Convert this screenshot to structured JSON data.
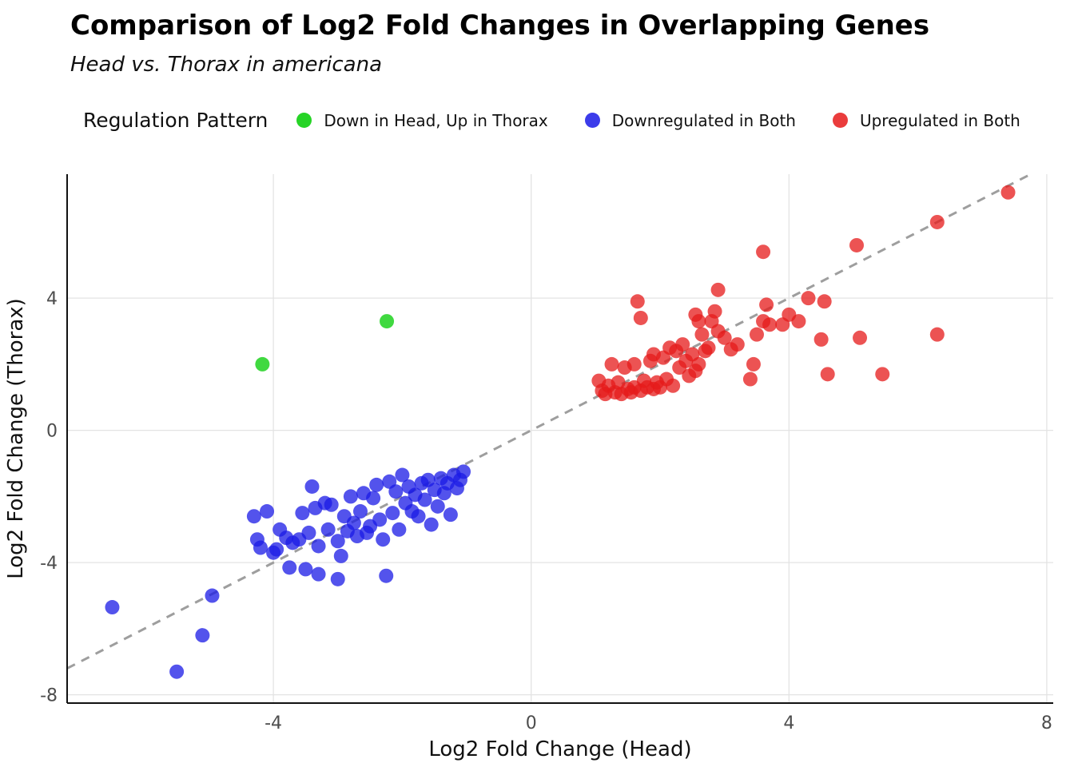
{
  "title": "Comparison of Log2 Fold Changes in Overlapping Genes",
  "subtitle": "Head vs. Thorax in americana",
  "legend": {
    "title": "Regulation Pattern",
    "items": [
      {
        "label": "Down in Head, Up in Thorax",
        "color": "#00cc00"
      },
      {
        "label": "Downregulated in Both",
        "color": "#1a1ae6"
      },
      {
        "label": "Upregulated in Both",
        "color": "#e61a1a"
      }
    ]
  },
  "chart_data": {
    "type": "scatter",
    "title": "Comparison of Log2 Fold Changes in Overlapping Genes",
    "subtitle": "Head vs. Thorax in americana",
    "xlabel": "Log2 Fold Change (Head)",
    "ylabel": "Log2 Fold Change (Thorax)",
    "xlim": [
      -7.2,
      8.1
    ],
    "ylim": [
      -8.25,
      7.75
    ],
    "xticks": [
      -4,
      0,
      4,
      8
    ],
    "yticks": [
      -8,
      -4,
      0,
      4
    ],
    "grid": true,
    "legend_position": "top",
    "identity_line": {
      "equation": "y = x",
      "style": "dashed",
      "color": "#9e9e9e",
      "x_range": [
        -7.2,
        7.75
      ]
    },
    "point_radius": 9,
    "point_opacity": 0.75,
    "axis_text_color": "#4d4d4d",
    "grid_color": "#e3e3e3",
    "series": [
      {
        "name": "Down in Head, Up in Thorax",
        "color": "#00cc00",
        "points": [
          [
            -4.17,
            2.0
          ],
          [
            -2.24,
            3.3
          ]
        ]
      },
      {
        "name": "Downregulated in Both",
        "color": "#1a1ae6",
        "points": [
          [
            -6.5,
            -5.35
          ],
          [
            -5.5,
            -7.3
          ],
          [
            -5.1,
            -6.2
          ],
          [
            -4.95,
            -5.0
          ],
          [
            -4.3,
            -2.6
          ],
          [
            -4.25,
            -3.3
          ],
          [
            -4.2,
            -3.55
          ],
          [
            -4.1,
            -2.45
          ],
          [
            -4.0,
            -3.7
          ],
          [
            -3.95,
            -3.6
          ],
          [
            -3.9,
            -3.0
          ],
          [
            -3.8,
            -3.25
          ],
          [
            -3.75,
            -4.15
          ],
          [
            -3.7,
            -3.4
          ],
          [
            -3.6,
            -3.3
          ],
          [
            -3.55,
            -2.5
          ],
          [
            -3.5,
            -4.2
          ],
          [
            -3.45,
            -3.1
          ],
          [
            -3.4,
            -1.7
          ],
          [
            -3.35,
            -2.35
          ],
          [
            -3.3,
            -3.5
          ],
          [
            -3.3,
            -4.35
          ],
          [
            -3.2,
            -2.2
          ],
          [
            -3.15,
            -3.0
          ],
          [
            -3.1,
            -2.25
          ],
          [
            -3.0,
            -3.35
          ],
          [
            -3.0,
            -4.5
          ],
          [
            -2.95,
            -3.8
          ],
          [
            -2.9,
            -2.6
          ],
          [
            -2.85,
            -3.05
          ],
          [
            -2.8,
            -2.0
          ],
          [
            -2.75,
            -2.8
          ],
          [
            -2.7,
            -3.2
          ],
          [
            -2.65,
            -2.45
          ],
          [
            -2.6,
            -1.9
          ],
          [
            -2.55,
            -3.1
          ],
          [
            -2.5,
            -2.9
          ],
          [
            -2.45,
            -2.05
          ],
          [
            -2.4,
            -1.65
          ],
          [
            -2.35,
            -2.7
          ],
          [
            -2.3,
            -3.3
          ],
          [
            -2.25,
            -4.4
          ],
          [
            -2.2,
            -1.55
          ],
          [
            -2.15,
            -2.5
          ],
          [
            -2.1,
            -1.85
          ],
          [
            -2.05,
            -3.0
          ],
          [
            -2.0,
            -1.35
          ],
          [
            -1.95,
            -2.2
          ],
          [
            -1.9,
            -1.7
          ],
          [
            -1.85,
            -2.45
          ],
          [
            -1.8,
            -1.95
          ],
          [
            -1.75,
            -2.6
          ],
          [
            -1.7,
            -1.6
          ],
          [
            -1.65,
            -2.1
          ],
          [
            -1.6,
            -1.5
          ],
          [
            -1.55,
            -2.85
          ],
          [
            -1.5,
            -1.8
          ],
          [
            -1.45,
            -2.3
          ],
          [
            -1.4,
            -1.45
          ],
          [
            -1.35,
            -1.9
          ],
          [
            -1.3,
            -1.6
          ],
          [
            -1.25,
            -2.55
          ],
          [
            -1.2,
            -1.35
          ],
          [
            -1.15,
            -1.75
          ],
          [
            -1.1,
            -1.5
          ],
          [
            -1.05,
            -1.25
          ]
        ]
      },
      {
        "name": "Upregulated in Both",
        "color": "#e61a1a",
        "points": [
          [
            1.05,
            1.5
          ],
          [
            1.1,
            1.2
          ],
          [
            1.15,
            1.1
          ],
          [
            1.2,
            1.35
          ],
          [
            1.25,
            2.0
          ],
          [
            1.3,
            1.15
          ],
          [
            1.35,
            1.45
          ],
          [
            1.4,
            1.1
          ],
          [
            1.45,
            1.9
          ],
          [
            1.5,
            1.25
          ],
          [
            1.55,
            1.15
          ],
          [
            1.6,
            2.0
          ],
          [
            1.6,
            1.3
          ],
          [
            1.65,
            3.9
          ],
          [
            1.7,
            1.2
          ],
          [
            1.7,
            3.4
          ],
          [
            1.75,
            1.5
          ],
          [
            1.8,
            1.3
          ],
          [
            1.85,
            2.1
          ],
          [
            1.9,
            1.25
          ],
          [
            1.9,
            2.3
          ],
          [
            1.95,
            1.45
          ],
          [
            2.0,
            1.3
          ],
          [
            2.05,
            2.2
          ],
          [
            2.1,
            1.55
          ],
          [
            2.15,
            2.5
          ],
          [
            2.2,
            1.35
          ],
          [
            2.25,
            2.4
          ],
          [
            2.3,
            1.9
          ],
          [
            2.35,
            2.6
          ],
          [
            2.4,
            2.1
          ],
          [
            2.45,
            1.65
          ],
          [
            2.5,
            2.3
          ],
          [
            2.55,
            1.8
          ],
          [
            2.55,
            3.5
          ],
          [
            2.6,
            2.0
          ],
          [
            2.6,
            3.3
          ],
          [
            2.65,
            2.9
          ],
          [
            2.7,
            2.4
          ],
          [
            2.75,
            2.5
          ],
          [
            2.8,
            3.3
          ],
          [
            2.85,
            3.6
          ],
          [
            2.9,
            4.25
          ],
          [
            2.9,
            3.0
          ],
          [
            3.0,
            2.8
          ],
          [
            3.1,
            2.45
          ],
          [
            3.2,
            2.6
          ],
          [
            3.4,
            1.55
          ],
          [
            3.45,
            2.0
          ],
          [
            3.5,
            2.9
          ],
          [
            3.6,
            5.4
          ],
          [
            3.65,
            3.8
          ],
          [
            3.6,
            3.3
          ],
          [
            3.7,
            3.2
          ],
          [
            3.9,
            3.2
          ],
          [
            4.0,
            3.5
          ],
          [
            4.15,
            3.3
          ],
          [
            4.3,
            4.0
          ],
          [
            4.5,
            2.75
          ],
          [
            4.55,
            3.9
          ],
          [
            4.6,
            1.7
          ],
          [
            5.05,
            5.6
          ],
          [
            5.1,
            2.8
          ],
          [
            5.45,
            1.7
          ],
          [
            6.3,
            6.3
          ],
          [
            6.3,
            2.9
          ],
          [
            7.4,
            7.2
          ]
        ]
      }
    ]
  }
}
